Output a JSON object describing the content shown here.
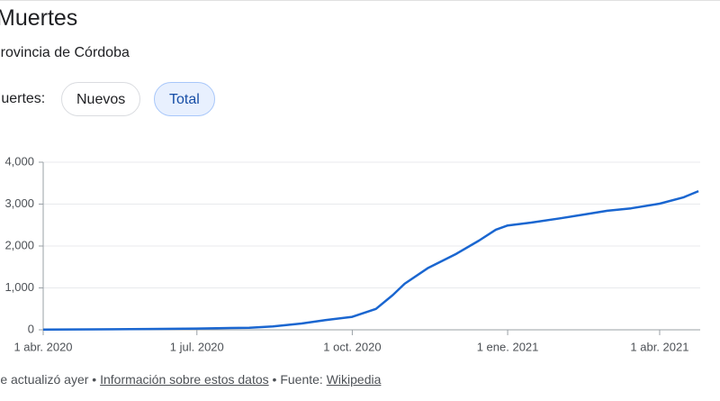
{
  "header": {
    "title": "Muertes",
    "subtitle": "Provincia de Córdoba"
  },
  "toggle": {
    "label": "Muertes:",
    "options": [
      "Nuevos",
      "Total"
    ]
  },
  "chart_data": {
    "type": "line",
    "color": "#1a66d0",
    "x": [
      "2020-04-01",
      "2020-05-01",
      "2020-06-01",
      "2020-07-01",
      "2020-08-01",
      "2020-08-15",
      "2020-09-01",
      "2020-09-15",
      "2020-10-01",
      "2020-10-15",
      "2020-10-25",
      "2020-11-01",
      "2020-11-15",
      "2020-12-01",
      "2020-12-15",
      "2020-12-25",
      "2021-01-01",
      "2021-01-15",
      "2021-02-01",
      "2021-02-15",
      "2021-03-01",
      "2021-03-15",
      "2021-04-01",
      "2021-04-15",
      "2021-04-24"
    ],
    "values": [
      5,
      10,
      20,
      30,
      50,
      80,
      150,
      230,
      310,
      500,
      830,
      1100,
      1480,
      1800,
      2130,
      2390,
      2490,
      2560,
      2660,
      2750,
      2840,
      2900,
      3010,
      3160,
      3310
    ],
    "xlim": [
      "2020-04-01",
      "2021-04-25"
    ],
    "xticks": [
      {
        "value": "2020-04-01",
        "label": "1 abr. 2020"
      },
      {
        "value": "2020-07-01",
        "label": "1 jul. 2020"
      },
      {
        "value": "2020-10-01",
        "label": "1 oct. 2020"
      },
      {
        "value": "2021-01-01",
        "label": "1 ene. 2021"
      },
      {
        "value": "2021-04-01",
        "label": "1 abr. 2021"
      }
    ],
    "ylim": [
      0,
      4000
    ],
    "yticks": [
      0,
      {
        "value": 1000,
        "label": "1,000"
      },
      {
        "value": 2000,
        "label": "2,000"
      },
      {
        "value": 3000,
        "label": "3,000"
      },
      {
        "value": 4000,
        "label": "4,000"
      }
    ],
    "grid": true
  },
  "footer": {
    "updated": "Se actualizó ayer",
    "separator": "•",
    "info_link": "Información sobre estos datos",
    "source_label": "Fuente:",
    "source_link": "Wikipedia"
  }
}
